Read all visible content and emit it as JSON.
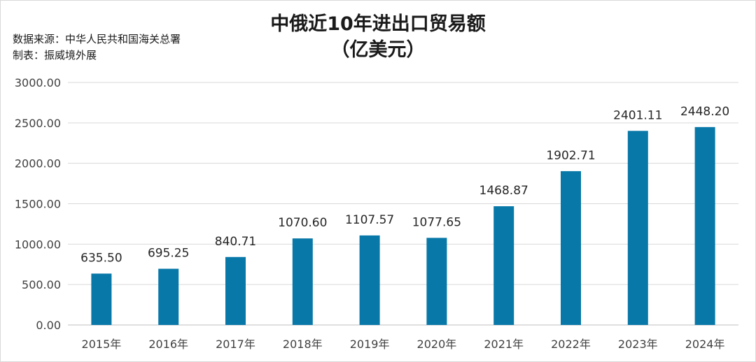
{
  "chart_data": {
    "type": "bar",
    "title": "中俄近10年进出口贸易额",
    "subtitle": "（亿美元）",
    "source": "数据来源：中华人民共和国海关总署",
    "producer": "制表：振威境外展",
    "categories": [
      "2015年",
      "2016年",
      "2017年",
      "2018年",
      "2019年",
      "2020年",
      "2021年",
      "2022年",
      "2023年",
      "2024年"
    ],
    "values": [
      635.5,
      695.25,
      840.71,
      1070.6,
      1107.57,
      1077.65,
      1468.87,
      1902.71,
      2401.11,
      2448.2
    ],
    "data_labels": [
      "635.50",
      "695.25",
      "840.71",
      "1070.60",
      "1107.57",
      "1077.65",
      "1468.87",
      "1902.71",
      "2401.11",
      "2448.20"
    ],
    "y_ticks": [
      "0.00",
      "500.00",
      "1000.00",
      "1500.00",
      "2000.00",
      "2500.00",
      "3000.00"
    ],
    "ylim": [
      0,
      3000
    ],
    "xlabel": "",
    "ylabel": "",
    "grid": true,
    "legend": "none",
    "bar_color": "#0878a8"
  }
}
